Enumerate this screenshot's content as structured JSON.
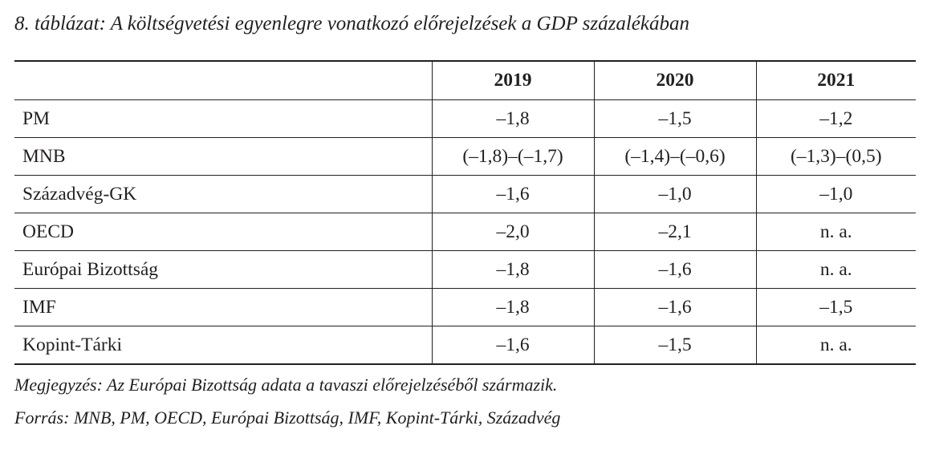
{
  "title": "8. táblázat: A költségvetési egyenlegre vonatkozó előrejelzések a GDP százalékában",
  "table": {
    "headers": [
      "",
      "2019",
      "2020",
      "2021"
    ],
    "rows": [
      {
        "label": "PM",
        "values": [
          "–1,8",
          "–1,5",
          "–1,2"
        ]
      },
      {
        "label": "MNB",
        "values": [
          "(–1,8)–(–1,7)",
          "(–1,4)–(–0,6)",
          "(–1,3)–(0,5)"
        ]
      },
      {
        "label": "Századvég-GK",
        "values": [
          "–1,6",
          "–1,0",
          "–1,0"
        ]
      },
      {
        "label": "OECD",
        "values": [
          "–2,0",
          "–2,1",
          "n. a."
        ]
      },
      {
        "label": "Európai Bizottság",
        "values": [
          "–1,8",
          "–1,6",
          "n. a."
        ]
      },
      {
        "label": "IMF",
        "values": [
          "–1,8",
          "–1,6",
          "–1,5"
        ]
      },
      {
        "label": "Kopint-Tárki",
        "values": [
          "–1,6",
          "–1,5",
          "n. a."
        ]
      }
    ]
  },
  "notes": {
    "note": "Megjegyzés: Az Európai Bizottság adata a tavaszi előrejelzéséből származik.",
    "source": "Forrás: MNB, PM, OECD, Európai Bizottság, IMF, Kopint-Tárki, Századvég"
  }
}
